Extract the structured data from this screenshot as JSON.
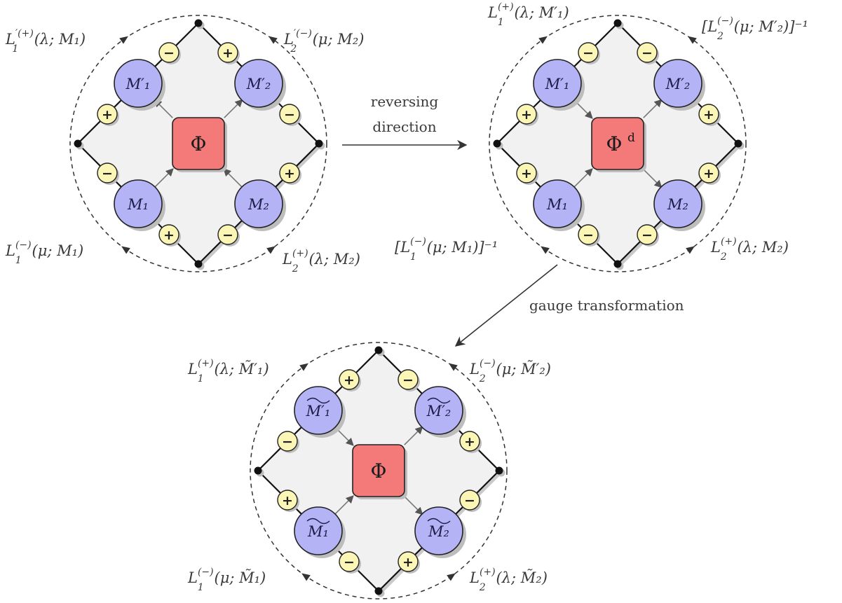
{
  "arrow_caption": {
    "line1": "reversing",
    "line2": "direction"
  },
  "gauge_caption": "gauge transformation",
  "diagrams": [
    {
      "id": "original",
      "center": "Φ",
      "center_sup": "",
      "nodes": {
        "tl": "M′₁",
        "tr": "M′₂",
        "bl": "M₁",
        "br": "M₂"
      },
      "node_tilde": false,
      "signs": {
        "tl_top": "−",
        "tl_left": "+",
        "tr_top": "+",
        "tr_right": "−",
        "bl_left": "−",
        "bl_bottom": "+",
        "br_bottom": "−",
        "br_right": "+"
      },
      "labels": {
        "tl": {
          "main": "L",
          "sup": "′(+)",
          "sub": "1",
          "args": "(λ; M₁)"
        },
        "tr": {
          "main": "L",
          "sup": "′(−)",
          "sub": "2",
          "args": "(μ; M₂)"
        },
        "bl": {
          "main": "L",
          "sup": "(−)",
          "sub": "1",
          "args": "(μ; M₁)"
        },
        "br": {
          "main": "L",
          "sup": "(+)",
          "sub": "2",
          "args": "(λ; M₂)"
        }
      }
    },
    {
      "id": "reversed",
      "center": "Φ",
      "center_sup": "d",
      "nodes": {
        "tl": "M′₁",
        "tr": "M′₂",
        "bl": "M₁",
        "br": "M₂"
      },
      "node_tilde": false,
      "signs": {
        "tl_top": "−",
        "tl_left": "+",
        "tr_top": "−",
        "tr_right": "+",
        "bl_left": "+",
        "bl_bottom": "−",
        "br_bottom": "−",
        "br_right": "+"
      },
      "labels": {
        "tl": {
          "main": "L",
          "sup": "(+)",
          "sub": "1",
          "args": "(λ; M′₁)"
        },
        "tr": {
          "main": "[L",
          "sup": "(−)",
          "sub": "2",
          "args": "(μ; M′₂)]⁻¹"
        },
        "bl": {
          "main": "[L",
          "sup": "(−)",
          "sub": "1",
          "args": "(μ; M₁)]⁻¹"
        },
        "br": {
          "main": "L",
          "sup": "(+)",
          "sub": "2",
          "args": "(λ; M₂)"
        }
      }
    },
    {
      "id": "gauge",
      "center": "Φ",
      "center_sup": "",
      "nodes": {
        "tl": "M′₁",
        "tr": "M′₂",
        "bl": "M₁",
        "br": "M₂"
      },
      "node_tilde": true,
      "signs": {
        "tl_top": "+",
        "tl_left": "−",
        "tr_top": "−",
        "tr_right": "+",
        "bl_left": "+",
        "bl_bottom": "−",
        "br_bottom": "+",
        "br_right": "−"
      },
      "labels": {
        "tl": {
          "main": "L",
          "sup": "(+)",
          "sub": "1",
          "args": "(λ; M̃′₁)"
        },
        "tr": {
          "main": "L",
          "sup": "(−)",
          "sub": "2",
          "args": "(μ; M̃′₂)"
        },
        "bl": {
          "main": "L",
          "sup": "(−)",
          "sub": "1",
          "args": "(μ; M̃₁)"
        },
        "br": {
          "main": "L",
          "sup": "(+)",
          "sub": "2",
          "args": "(λ; M̃₂)"
        }
      }
    }
  ],
  "colors": {
    "node_fill": "#b3b3f5",
    "center_fill": "#f47a7a",
    "sign_fill": "#fbf5b6",
    "panel_fill": "#f1f1f1",
    "stroke": "#111111"
  }
}
